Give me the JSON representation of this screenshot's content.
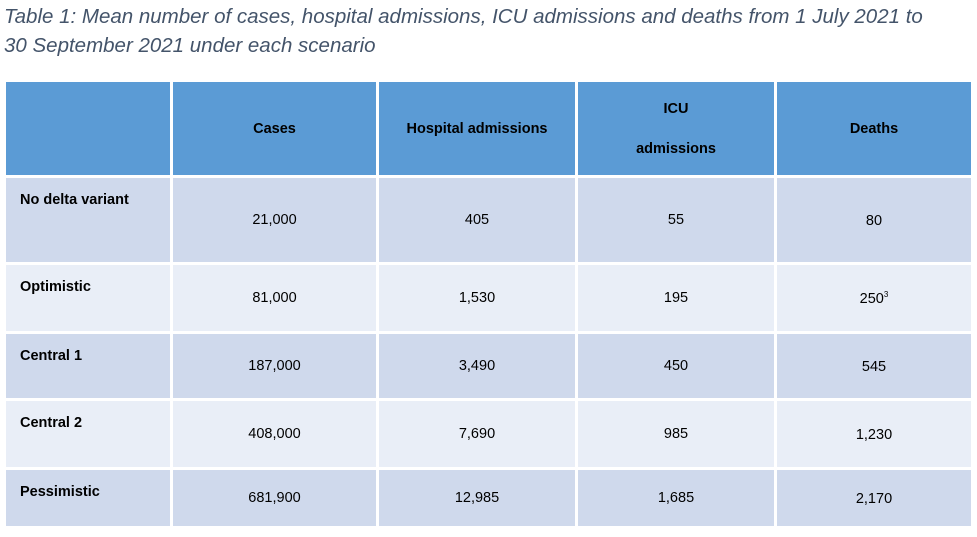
{
  "caption": {
    "line1": "Table 1: Mean number of cases, hospital admissions, ICU admissions and deaths from 1 July 2021 to",
    "line2": "30 September 2021 under each scenario"
  },
  "table": {
    "headers": {
      "scenario": "",
      "cases": "Cases",
      "hospital": "Hospital admissions",
      "icu_line1": "ICU",
      "icu_line2": "admissions",
      "deaths": "Deaths"
    },
    "rows": [
      {
        "scenario": "No delta variant",
        "cases": "21,000",
        "hospital": "405",
        "icu": "55",
        "deaths": "80",
        "deaths_note": ""
      },
      {
        "scenario": "Optimistic",
        "cases": "81,000",
        "hospital": "1,530",
        "icu": "195",
        "deaths": "250",
        "deaths_note": "3"
      },
      {
        "scenario": "Central 1",
        "cases": "187,000",
        "hospital": "3,490",
        "icu": "450",
        "deaths": "545",
        "deaths_note": ""
      },
      {
        "scenario": "Central 2",
        "cases": "408,000",
        "hospital": "7,690",
        "icu": "985",
        "deaths": "1,230",
        "deaths_note": ""
      },
      {
        "scenario": "Pessimistic",
        "cases": "681,900",
        "hospital": "12,985",
        "icu": "1,685",
        "deaths": "2,170",
        "deaths_note": ""
      }
    ]
  }
}
